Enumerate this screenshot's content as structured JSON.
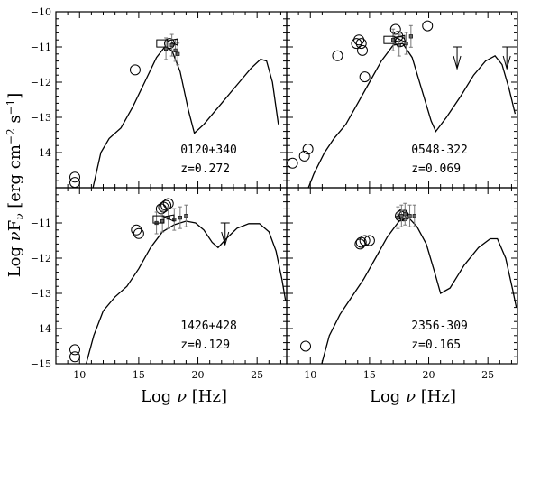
{
  "chart_data": {
    "type": "scatter",
    "xlabel": "Log ν [Hz]",
    "ylabel": "Log νFν [erg cm⁻² s⁻¹]",
    "xlim": [
      8,
      27.5
    ],
    "ylim": [
      -15,
      -10
    ],
    "x_ticks": [
      "10",
      "15",
      "20",
      "25"
    ],
    "y_ticks": [
      "-10",
      "-11",
      "-12",
      "-13",
      "-14",
      "-15"
    ],
    "panels": [
      {
        "name": "0120+340",
        "redshift": "z=0.272",
        "model": [
          [
            11,
            -15.2
          ],
          [
            11.8,
            -14
          ],
          [
            12.5,
            -13.6
          ],
          [
            13.5,
            -13.3
          ],
          [
            14.5,
            -12.7
          ],
          [
            15.5,
            -12
          ],
          [
            16.5,
            -11.3
          ],
          [
            17.2,
            -11.0
          ],
          [
            17.8,
            -11.1
          ],
          [
            18.5,
            -11.7
          ],
          [
            19.2,
            -12.8
          ],
          [
            19.7,
            -13.45
          ],
          [
            20.5,
            -13.2
          ],
          [
            22,
            -12.6
          ],
          [
            23.5,
            -12.0
          ],
          [
            24.5,
            -11.6
          ],
          [
            25.3,
            -11.35
          ],
          [
            25.8,
            -11.4
          ],
          [
            26.3,
            -12.0
          ],
          [
            26.8,
            -13.2
          ]
        ],
        "circles": [
          [
            9.6,
            -14.7
          ],
          [
            9.6,
            -14.85
          ],
          [
            14.7,
            -11.65
          ],
          [
            17.6,
            -10.9
          ]
        ],
        "dots": [
          [
            17.3,
            -11.05
          ],
          [
            17.8,
            -10.95
          ],
          [
            18.1,
            -11.1
          ],
          [
            18.3,
            -11.2
          ]
        ],
        "boxes": [
          [
            16.9,
            -10.9
          ]
        ],
        "upper_limits": []
      },
      {
        "name": "0548-322",
        "redshift": "z=0.069",
        "model": [
          [
            9.6,
            -15.2
          ],
          [
            10.3,
            -14.6
          ],
          [
            11.2,
            -14.0
          ],
          [
            12,
            -13.6
          ],
          [
            13,
            -13.2
          ],
          [
            14,
            -12.6
          ],
          [
            15,
            -12.0
          ],
          [
            16,
            -11.4
          ],
          [
            17,
            -10.95
          ],
          [
            17.8,
            -10.9
          ],
          [
            18.6,
            -11.3
          ],
          [
            19.4,
            -12.2
          ],
          [
            20.2,
            -13.1
          ],
          [
            20.6,
            -13.4
          ],
          [
            21.5,
            -13.0
          ],
          [
            22.7,
            -12.4
          ],
          [
            23.8,
            -11.8
          ],
          [
            24.8,
            -11.4
          ],
          [
            25.6,
            -11.25
          ],
          [
            26.2,
            -11.5
          ],
          [
            26.8,
            -12.2
          ],
          [
            27.3,
            -12.9
          ]
        ],
        "circles": [
          [
            8.5,
            -14.3
          ],
          [
            9.5,
            -14.1
          ],
          [
            9.8,
            -13.9
          ],
          [
            12.3,
            -11.25
          ],
          [
            13.9,
            -10.9
          ],
          [
            14.1,
            -10.8
          ],
          [
            14.3,
            -10.9
          ],
          [
            14.4,
            -11.1
          ],
          [
            14.6,
            -11.85
          ],
          [
            17.2,
            -10.5
          ],
          [
            17.4,
            -10.7
          ],
          [
            17.6,
            -10.85
          ],
          [
            19.9,
            -10.4
          ]
        ],
        "dots": [
          [
            17.0,
            -10.8
          ],
          [
            17.5,
            -10.95
          ],
          [
            18.1,
            -10.9
          ],
          [
            18.5,
            -10.7
          ]
        ],
        "boxes": [
          [
            16.6,
            -10.8
          ]
        ],
        "upper_limits": [
          [
            22.4,
            -11.0
          ],
          [
            26.6,
            -11.0
          ]
        ]
      },
      {
        "name": "1426+428",
        "redshift": "z=0.129",
        "model": [
          [
            10.4,
            -15.2
          ],
          [
            11.2,
            -14.2
          ],
          [
            12,
            -13.5
          ],
          [
            13,
            -13.1
          ],
          [
            14,
            -12.8
          ],
          [
            15,
            -12.3
          ],
          [
            16,
            -11.7
          ],
          [
            17,
            -11.25
          ],
          [
            18,
            -11.05
          ],
          [
            19,
            -10.95
          ],
          [
            19.8,
            -11.0
          ],
          [
            20.5,
            -11.2
          ],
          [
            21.2,
            -11.55
          ],
          [
            21.7,
            -11.7
          ],
          [
            22.4,
            -11.45
          ],
          [
            23.3,
            -11.15
          ],
          [
            24.3,
            -11.02
          ],
          [
            25.2,
            -11.02
          ],
          [
            26,
            -11.25
          ],
          [
            26.6,
            -11.8
          ],
          [
            27.1,
            -12.6
          ],
          [
            27.4,
            -13.2
          ]
        ],
        "circles": [
          [
            9.6,
            -14.6
          ],
          [
            9.6,
            -14.8
          ],
          [
            14.8,
            -11.2
          ],
          [
            15.0,
            -11.3
          ],
          [
            16.9,
            -10.6
          ],
          [
            17.1,
            -10.55
          ],
          [
            17.3,
            -10.5
          ],
          [
            17.5,
            -10.45
          ]
        ],
        "dots": [
          [
            16.5,
            -11.0
          ],
          [
            17.0,
            -10.95
          ],
          [
            17.5,
            -10.85
          ],
          [
            18.0,
            -10.9
          ],
          [
            18.5,
            -10.85
          ],
          [
            19.0,
            -10.8
          ]
        ],
        "boxes": [
          [
            16.6,
            -10.9
          ]
        ],
        "upper_limits": [
          [
            22.3,
            -11.0
          ]
        ]
      },
      {
        "name": "2356-309",
        "redshift": "z=0.165",
        "model": [
          [
            10.8,
            -15.2
          ],
          [
            11.6,
            -14.2
          ],
          [
            12.5,
            -13.6
          ],
          [
            13.5,
            -13.1
          ],
          [
            14.5,
            -12.6
          ],
          [
            15.5,
            -12.0
          ],
          [
            16.5,
            -11.4
          ],
          [
            17.5,
            -10.95
          ],
          [
            18.3,
            -10.85
          ],
          [
            19,
            -11.1
          ],
          [
            19.8,
            -11.6
          ],
          [
            20.5,
            -12.4
          ],
          [
            21.0,
            -13.0
          ],
          [
            21.8,
            -12.85
          ],
          [
            23,
            -12.2
          ],
          [
            24.2,
            -11.7
          ],
          [
            25.2,
            -11.45
          ],
          [
            25.8,
            -11.45
          ],
          [
            26.5,
            -12.0
          ],
          [
            27.1,
            -12.9
          ],
          [
            27.4,
            -13.4
          ]
        ],
        "circles": [
          [
            9.6,
            -14.5
          ],
          [
            14.2,
            -11.6
          ],
          [
            14.3,
            -11.55
          ],
          [
            14.6,
            -11.5
          ],
          [
            15.0,
            -11.5
          ],
          [
            17.6,
            -10.8
          ],
          [
            17.8,
            -10.75
          ],
          [
            17.9,
            -10.8
          ]
        ],
        "dots": [
          [
            17.4,
            -10.85
          ],
          [
            17.7,
            -10.8
          ],
          [
            18.0,
            -10.75
          ],
          [
            18.4,
            -10.8
          ],
          [
            18.8,
            -10.8
          ]
        ],
        "boxes": [],
        "upper_limits": []
      }
    ]
  }
}
